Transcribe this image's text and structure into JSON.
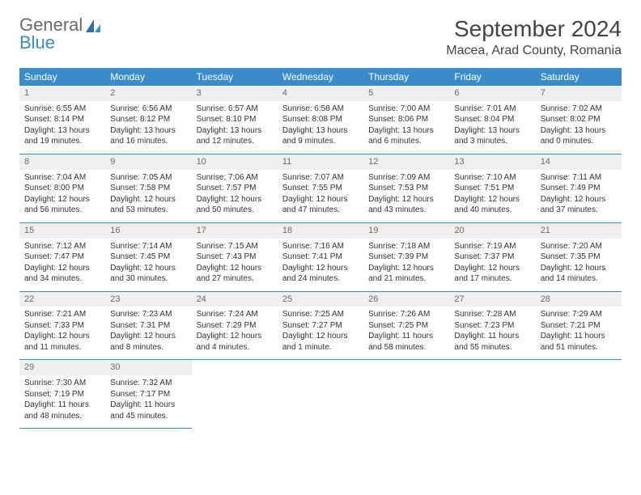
{
  "logo": {
    "top": "General",
    "bottom": "Blue"
  },
  "header": {
    "month_title": "September 2024",
    "location": "Macea, Arad County, Romania"
  },
  "colors": {
    "header_bg": "#3a8bc9",
    "header_fg": "#ffffff",
    "daynum_bg": "#efefef",
    "daynum_fg": "#6b6b6b",
    "cell_border": "#3a8bc9"
  },
  "weekdays": [
    "Sunday",
    "Monday",
    "Tuesday",
    "Wednesday",
    "Thursday",
    "Friday",
    "Saturday"
  ],
  "days": [
    {
      "n": 1,
      "sunrise": "6:55 AM",
      "sunset": "8:14 PM",
      "daylight": "13 hours and 19 minutes."
    },
    {
      "n": 2,
      "sunrise": "6:56 AM",
      "sunset": "8:12 PM",
      "daylight": "13 hours and 16 minutes."
    },
    {
      "n": 3,
      "sunrise": "6:57 AM",
      "sunset": "8:10 PM",
      "daylight": "13 hours and 12 minutes."
    },
    {
      "n": 4,
      "sunrise": "6:58 AM",
      "sunset": "8:08 PM",
      "daylight": "13 hours and 9 minutes."
    },
    {
      "n": 5,
      "sunrise": "7:00 AM",
      "sunset": "8:06 PM",
      "daylight": "13 hours and 6 minutes."
    },
    {
      "n": 6,
      "sunrise": "7:01 AM",
      "sunset": "8:04 PM",
      "daylight": "13 hours and 3 minutes."
    },
    {
      "n": 7,
      "sunrise": "7:02 AM",
      "sunset": "8:02 PM",
      "daylight": "13 hours and 0 minutes."
    },
    {
      "n": 8,
      "sunrise": "7:04 AM",
      "sunset": "8:00 PM",
      "daylight": "12 hours and 56 minutes."
    },
    {
      "n": 9,
      "sunrise": "7:05 AM",
      "sunset": "7:58 PM",
      "daylight": "12 hours and 53 minutes."
    },
    {
      "n": 10,
      "sunrise": "7:06 AM",
      "sunset": "7:57 PM",
      "daylight": "12 hours and 50 minutes."
    },
    {
      "n": 11,
      "sunrise": "7:07 AM",
      "sunset": "7:55 PM",
      "daylight": "12 hours and 47 minutes."
    },
    {
      "n": 12,
      "sunrise": "7:09 AM",
      "sunset": "7:53 PM",
      "daylight": "12 hours and 43 minutes."
    },
    {
      "n": 13,
      "sunrise": "7:10 AM",
      "sunset": "7:51 PM",
      "daylight": "12 hours and 40 minutes."
    },
    {
      "n": 14,
      "sunrise": "7:11 AM",
      "sunset": "7:49 PM",
      "daylight": "12 hours and 37 minutes."
    },
    {
      "n": 15,
      "sunrise": "7:12 AM",
      "sunset": "7:47 PM",
      "daylight": "12 hours and 34 minutes."
    },
    {
      "n": 16,
      "sunrise": "7:14 AM",
      "sunset": "7:45 PM",
      "daylight": "12 hours and 30 minutes."
    },
    {
      "n": 17,
      "sunrise": "7:15 AM",
      "sunset": "7:43 PM",
      "daylight": "12 hours and 27 minutes."
    },
    {
      "n": 18,
      "sunrise": "7:16 AM",
      "sunset": "7:41 PM",
      "daylight": "12 hours and 24 minutes."
    },
    {
      "n": 19,
      "sunrise": "7:18 AM",
      "sunset": "7:39 PM",
      "daylight": "12 hours and 21 minutes."
    },
    {
      "n": 20,
      "sunrise": "7:19 AM",
      "sunset": "7:37 PM",
      "daylight": "12 hours and 17 minutes."
    },
    {
      "n": 21,
      "sunrise": "7:20 AM",
      "sunset": "7:35 PM",
      "daylight": "12 hours and 14 minutes."
    },
    {
      "n": 22,
      "sunrise": "7:21 AM",
      "sunset": "7:33 PM",
      "daylight": "12 hours and 11 minutes."
    },
    {
      "n": 23,
      "sunrise": "7:23 AM",
      "sunset": "7:31 PM",
      "daylight": "12 hours and 8 minutes."
    },
    {
      "n": 24,
      "sunrise": "7:24 AM",
      "sunset": "7:29 PM",
      "daylight": "12 hours and 4 minutes."
    },
    {
      "n": 25,
      "sunrise": "7:25 AM",
      "sunset": "7:27 PM",
      "daylight": "12 hours and 1 minute."
    },
    {
      "n": 26,
      "sunrise": "7:26 AM",
      "sunset": "7:25 PM",
      "daylight": "11 hours and 58 minutes."
    },
    {
      "n": 27,
      "sunrise": "7:28 AM",
      "sunset": "7:23 PM",
      "daylight": "11 hours and 55 minutes."
    },
    {
      "n": 28,
      "sunrise": "7:29 AM",
      "sunset": "7:21 PM",
      "daylight": "11 hours and 51 minutes."
    },
    {
      "n": 29,
      "sunrise": "7:30 AM",
      "sunset": "7:19 PM",
      "daylight": "11 hours and 48 minutes."
    },
    {
      "n": 30,
      "sunrise": "7:32 AM",
      "sunset": "7:17 PM",
      "daylight": "11 hours and 45 minutes."
    }
  ],
  "labels": {
    "sunrise_prefix": "Sunrise: ",
    "sunset_prefix": "Sunset: ",
    "daylight_prefix": "Daylight: "
  }
}
